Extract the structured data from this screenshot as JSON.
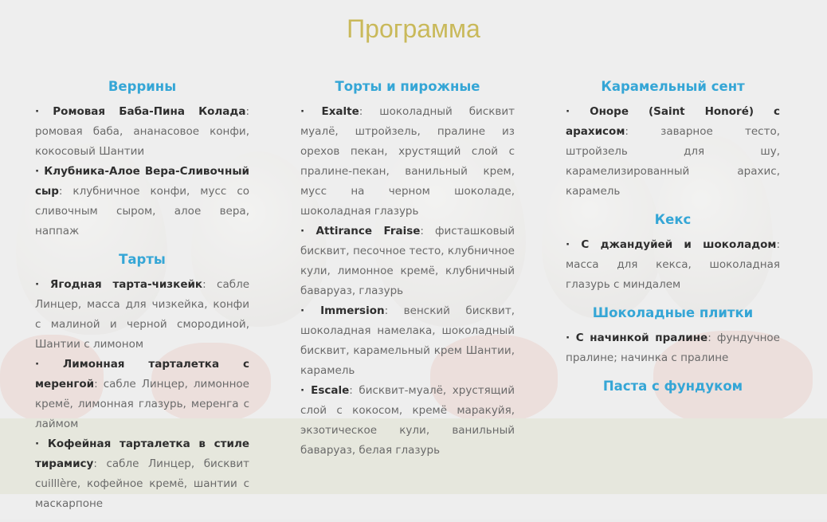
{
  "title": "Программа",
  "columns": [
    {
      "sections": [
        {
          "heading": "Веррины",
          "items": [
            {
              "name": "· Ромовая Баба-Пина Колада",
              "desc": ": ромовая баба, ананасовое конфи, кокосовый Шантии"
            },
            {
              "name": "· Клубника-Алое Вера-Сливочный сыр",
              "desc": ": клубничное конфи, мусс со сливочным сыром, алое вера, наппаж"
            }
          ]
        },
        {
          "heading": "Тарты",
          "items": [
            {
              "name": "· Ягодная тарта-чизкейк",
              "desc": ": сабле Линцер, масса для чизкейка, конфи с малиной и черной смородиной, Шантии с лимоном"
            },
            {
              "name": "· Лимонная тарталетка с меренгой",
              "desc": ": сабле Линцер, лимонное кремё, лимонная глазурь, меренга с лаймом"
            },
            {
              "name": "· Кофейная тарталетка в стиле тирамису",
              "desc": ": сабле Линцер, бисквит cuilllère, кофейное кремё, шантии с маскарпоне"
            }
          ]
        }
      ]
    },
    {
      "sections": [
        {
          "heading": "Торты и пирожные",
          "items": [
            {
              "name": "· Exalte",
              "desc": ": шоколадный бисквит муалё, штройзель, пралине из орехов пекан, хрустящий слой с пралине-пекан, ванильный крем, мусс на черном шоколаде, шоколадная глазурь"
            },
            {
              "name": "· Attirance Fraise",
              "desc": ": фисташковый бисквит, песочное тесто, клубничное кули, лимонное кремё, клубничный бавaруаз, глазурь"
            },
            {
              "name": "· Immersion",
              "desc": ": венский бисквит, шоколадная намелака, шоколадный бисквит, карамельный крем Шантии, карамель"
            },
            {
              "name": "· Escale",
              "desc": ": бисквит-муалё, хрустящий слой с кокосом, кремё маракуйя, экзотическое кули, ванильный бавaруаз, белая глазурь"
            }
          ]
        }
      ]
    },
    {
      "sections": [
        {
          "heading": "Карамельный сент",
          "items": [
            {
              "name": "· Оноре (Saint Honoré) с арахисом",
              "desc": ": заварное тесто, штройзель для шу, карамелизированный арахис, карамель"
            }
          ]
        },
        {
          "heading": "Кекс",
          "items": [
            {
              "name": "· С джандуйей и шоколадом",
              "desc": ": масса для кекса, шоколадная глазурь с миндалем"
            }
          ]
        },
        {
          "heading": "Шоколадные плитки",
          "items": [
            {
              "name": "· С начинкой пралине",
              "desc": ": фундучное пралине; начинка с пралине"
            }
          ]
        },
        {
          "heading": "Паста с фундуком"
        }
      ]
    }
  ]
}
